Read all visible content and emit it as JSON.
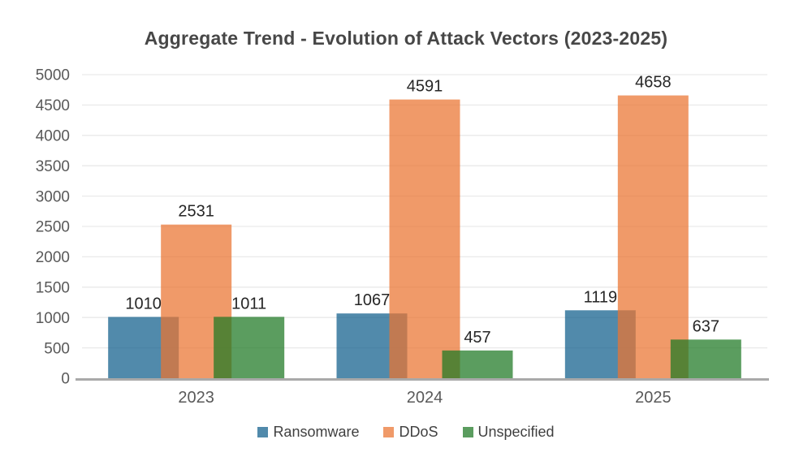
{
  "title": "Aggregate Trend - Evolution of Attack Vectors (2023-2025)",
  "chart_data": {
    "type": "bar",
    "title": "Aggregate Trend - Evolution of Attack Vectors (2023-2025)",
    "categories": [
      "2023",
      "2024",
      "2025"
    ],
    "series": [
      {
        "name": "Ransomware",
        "color": "#115F8C",
        "values": [
          1010,
          1067,
          1119
        ]
      },
      {
        "name": "DDoS",
        "color": "#EB7532",
        "values": [
          2531,
          4591,
          4658
        ]
      },
      {
        "name": "Unspecified",
        "color": "#1E7823",
        "values": [
          1011,
          457,
          637
        ]
      }
    ],
    "bar_opacity": 0.73,
    "overlapping_bars": true,
    "data_labels": true,
    "ylim": [
      0,
      5000
    ],
    "ytick_step": 500,
    "ytick_labels": [
      "0",
      "500",
      "1000",
      "1500",
      "2000",
      "2500",
      "3000",
      "3500",
      "4000",
      "4500",
      "5000"
    ],
    "grid": true,
    "legend_position": "bottom"
  },
  "colors": {
    "background": "#FFFFFF",
    "title_text": "#474747",
    "axis_text": "#595959",
    "data_label_text": "#262626",
    "legend_text": "#404040",
    "gridline": "#E9E9E9",
    "axis_line": "#A9A9A9"
  }
}
